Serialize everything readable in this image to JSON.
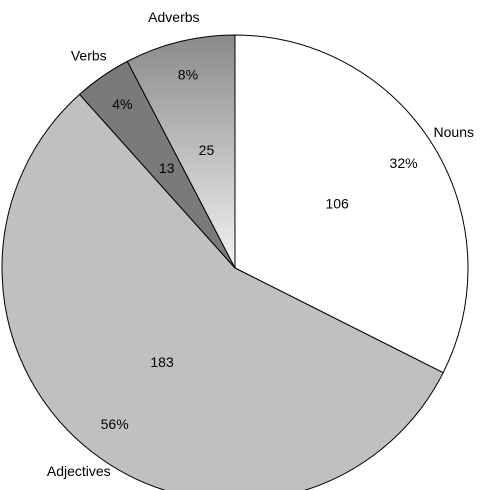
{
  "chart_data": {
    "type": "pie",
    "categories": [
      "Nouns",
      "Adjectives",
      "Verbs",
      "Adverbs"
    ],
    "values": [
      106,
      183,
      13,
      25
    ],
    "percent_labels": [
      "32%",
      "56%",
      "4%",
      "8%"
    ],
    "colors": [
      "#ffffff",
      "#c0c0c0",
      "#7a7a7a",
      "gradient"
    ]
  }
}
